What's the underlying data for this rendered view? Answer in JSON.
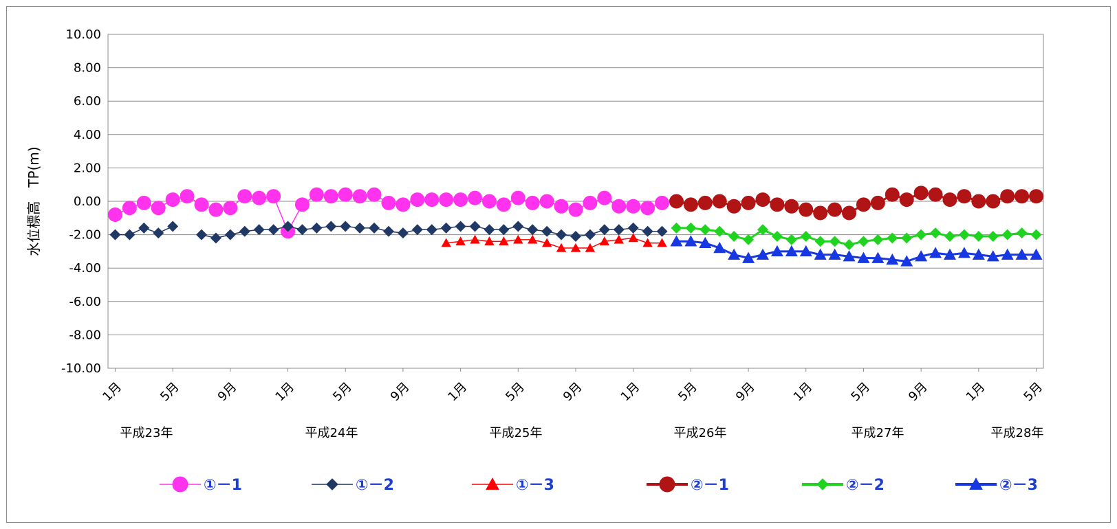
{
  "chart_data": {
    "type": "line",
    "ylabel": "水位標高　TP(m)",
    "ylim": [
      -10,
      10
    ],
    "y_ticks": [
      "10.00",
      "8.00",
      "6.00",
      "4.00",
      "2.00",
      "0.00",
      "-2.00",
      "-4.00",
      "-6.00",
      "-8.00",
      "-10.00"
    ],
    "x_month_labels": [
      "1月",
      "5月",
      "9月",
      "1月",
      "5月",
      "9月",
      "1月",
      "5月",
      "9月",
      "1月",
      "5月",
      "9月",
      "1月",
      "5月",
      "9月",
      "1月",
      "5月"
    ],
    "x_year_labels": [
      "平成23年",
      "平成24年",
      "平成25年",
      "平成26年",
      "平成27年",
      "平成28年"
    ],
    "grid": true,
    "legend_position": "bottom",
    "series": [
      {
        "name": "①－1",
        "color": "#ff33ee",
        "marker": "circle-large",
        "line": "thin",
        "start": 0,
        "values": [
          -0.8,
          -0.4,
          -0.1,
          -0.4,
          0.1,
          0.3,
          -0.2,
          -0.5,
          -0.4,
          0.3,
          0.2,
          0.3,
          -1.8,
          -0.2,
          0.4,
          0.3,
          0.4,
          0.3,
          0.4,
          -0.1,
          -0.2,
          0.1,
          0.1,
          0.1,
          0.1,
          0.2,
          0.0,
          -0.2,
          0.2,
          -0.1,
          0.0,
          -0.3,
          -0.5,
          -0.1,
          0.2,
          -0.3,
          -0.3,
          -0.4,
          -0.1
        ]
      },
      {
        "name": "①－2",
        "color": "#1f3864",
        "marker": "diamond",
        "line": "thin",
        "start": 0,
        "values": [
          -2.0,
          -2.0,
          -1.6,
          -1.9,
          -1.5,
          null,
          -2.0,
          -2.2,
          -2.0,
          -1.8,
          -1.7,
          -1.7,
          -1.5,
          -1.7,
          -1.6,
          -1.5,
          -1.5,
          -1.6,
          -1.6,
          -1.8,
          -1.9,
          -1.7,
          -1.7,
          -1.6,
          -1.5,
          -1.5,
          -1.7,
          -1.7,
          -1.5,
          -1.7,
          -1.8,
          -2.0,
          -2.1,
          -2.0,
          -1.7,
          -1.7,
          -1.6,
          -1.8,
          -1.8
        ]
      },
      {
        "name": "①－3",
        "color": "#ff0000",
        "marker": "triangle",
        "line": "thin",
        "start": 23,
        "values": [
          -2.5,
          -2.4,
          -2.3,
          -2.4,
          -2.4,
          -2.3,
          -2.3,
          -2.5,
          -2.8,
          -2.8,
          -2.8,
          -2.4,
          -2.3,
          -2.2,
          -2.5,
          -2.5
        ]
      },
      {
        "name": "②－1",
        "color": "#b01414",
        "marker": "circle-large",
        "line": "thick",
        "start": 39,
        "values": [
          0.0,
          -0.2,
          -0.1,
          0.0,
          -0.3,
          -0.1,
          0.1,
          -0.2,
          -0.3,
          -0.5,
          -0.7,
          -0.5,
          -0.7,
          -0.2,
          -0.1,
          0.4,
          0.1,
          0.5,
          0.4,
          0.1,
          0.3,
          0.0,
          0.0,
          0.3,
          0.3,
          0.3
        ]
      },
      {
        "name": "②－2",
        "color": "#21d321",
        "marker": "diamond",
        "line": "thick",
        "start": 39,
        "values": [
          -1.6,
          -1.6,
          -1.7,
          -1.8,
          -2.1,
          -2.3,
          -1.7,
          -2.1,
          -2.3,
          -2.1,
          -2.4,
          -2.4,
          -2.6,
          -2.4,
          -2.3,
          -2.2,
          -2.2,
          -2.0,
          -1.9,
          -2.1,
          -2.0,
          -2.1,
          -2.1,
          -2.0,
          -1.9,
          -2.0
        ]
      },
      {
        "name": "②－3",
        "color": "#1737e0",
        "marker": "triangle",
        "line": "thick",
        "start": 39,
        "values": [
          -2.4,
          -2.4,
          -2.5,
          -2.8,
          -3.2,
          -3.4,
          -3.2,
          -3.0,
          -3.0,
          -3.0,
          -3.2,
          -3.2,
          -3.3,
          -3.4,
          -3.4,
          -3.5,
          -3.6,
          -3.3,
          -3.1,
          -3.2,
          -3.1,
          -3.2,
          -3.3,
          -3.2,
          -3.2,
          -3.2
        ]
      }
    ]
  }
}
